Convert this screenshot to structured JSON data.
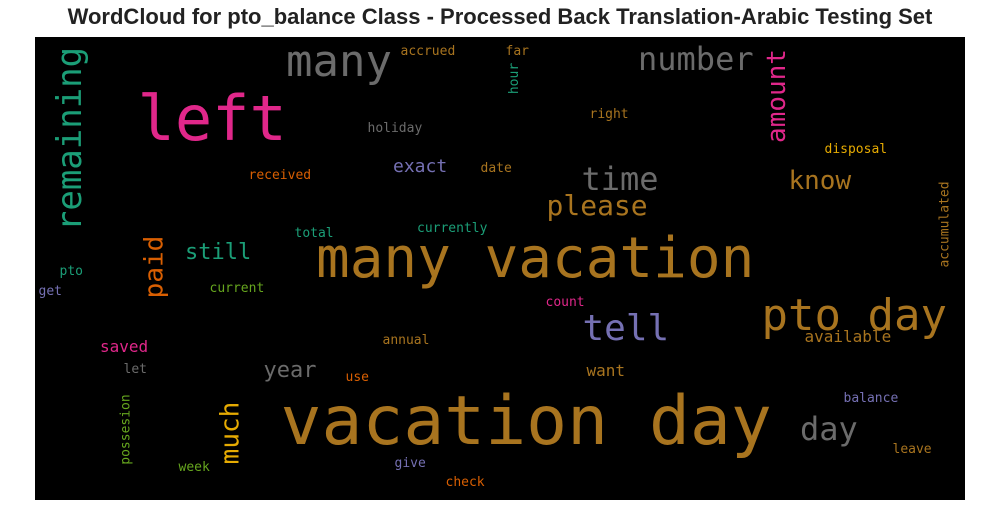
{
  "title": "WordCloud for pto_balance Class - Processed Back Translation-Arabic Testing Set",
  "words": [
    {
      "text": "vacation day",
      "color": "#a8741f",
      "orient": "h"
    },
    {
      "text": "many vacation",
      "color": "#a8741f",
      "orient": "h"
    },
    {
      "text": "left",
      "color": "#e0278a",
      "orient": "h"
    },
    {
      "text": "pto day",
      "color": "#a8741f",
      "orient": "h"
    },
    {
      "text": "many",
      "color": "#6b6b6b",
      "orient": "h"
    },
    {
      "text": "remaining",
      "color": "#1b9e77",
      "orient": "v"
    },
    {
      "text": "tell",
      "color": "#7570b3",
      "orient": "h"
    },
    {
      "text": "number",
      "color": "#6b6b6b",
      "orient": "h"
    },
    {
      "text": "time",
      "color": "#6b6b6b",
      "orient": "h"
    },
    {
      "text": "day",
      "color": "#6b6b6b",
      "orient": "h"
    },
    {
      "text": "please",
      "color": "#a8741f",
      "orient": "h"
    },
    {
      "text": "amount",
      "color": "#e0278a",
      "orient": "v"
    },
    {
      "text": "know",
      "color": "#a8741f",
      "orient": "h"
    },
    {
      "text": "paid",
      "color": "#d95f02",
      "orient": "v"
    },
    {
      "text": "much",
      "color": "#e6ab02",
      "orient": "v"
    },
    {
      "text": "still",
      "color": "#1b9e77",
      "orient": "h"
    },
    {
      "text": "year",
      "color": "#6b6b6b",
      "orient": "h"
    },
    {
      "text": "exact",
      "color": "#7570b3",
      "orient": "h"
    },
    {
      "text": "saved",
      "color": "#e0278a",
      "orient": "h"
    },
    {
      "text": "available",
      "color": "#a8741f",
      "orient": "h"
    },
    {
      "text": "want",
      "color": "#a8741f",
      "orient": "h"
    },
    {
      "text": "accrued",
      "color": "#a8741f",
      "orient": "h"
    },
    {
      "text": "far",
      "color": "#a8741f",
      "orient": "h"
    },
    {
      "text": "hour",
      "color": "#1b9e77",
      "orient": "v"
    },
    {
      "text": "holiday",
      "color": "#6b6b6b",
      "orient": "h"
    },
    {
      "text": "right",
      "color": "#a8741f",
      "orient": "h"
    },
    {
      "text": "disposal",
      "color": "#e6ab02",
      "orient": "h"
    },
    {
      "text": "received",
      "color": "#d95f02",
      "orient": "h"
    },
    {
      "text": "date",
      "color": "#a8741f",
      "orient": "h"
    },
    {
      "text": "accumulated",
      "color": "#a8741f",
      "orient": "v"
    },
    {
      "text": "total",
      "color": "#1b9e77",
      "orient": "h"
    },
    {
      "text": "currently",
      "color": "#1b9e77",
      "orient": "h"
    },
    {
      "text": "pto",
      "color": "#1b9e77",
      "orient": "h"
    },
    {
      "text": "get",
      "color": "#7570b3",
      "orient": "h"
    },
    {
      "text": "current",
      "color": "#66a61e",
      "orient": "h"
    },
    {
      "text": "count",
      "color": "#e0278a",
      "orient": "h"
    },
    {
      "text": "annual",
      "color": "#a8741f",
      "orient": "h"
    },
    {
      "text": "let",
      "color": "#6b6b6b",
      "orient": "h"
    },
    {
      "text": "use",
      "color": "#d95f02",
      "orient": "h"
    },
    {
      "text": "balance",
      "color": "#7570b3",
      "orient": "h"
    },
    {
      "text": "possesion",
      "color": "#66a61e",
      "orient": "v"
    },
    {
      "text": "week",
      "color": "#66a61e",
      "orient": "h"
    },
    {
      "text": "give",
      "color": "#7570b3",
      "orient": "h"
    },
    {
      "text": "leave",
      "color": "#a8741f",
      "orient": "h"
    },
    {
      "text": "check",
      "color": "#d95f02",
      "orient": "h"
    }
  ]
}
